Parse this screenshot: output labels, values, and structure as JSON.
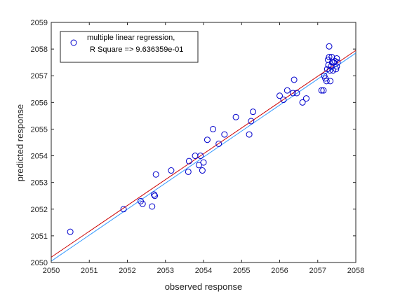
{
  "chart_data": {
    "type": "scatter",
    "xlabel": "observed response",
    "ylabel": "predicted response",
    "xlim": [
      2050,
      2058
    ],
    "ylim": [
      2050,
      2059
    ],
    "x_ticks": [
      "2050",
      "2051",
      "2052",
      "2053",
      "2054",
      "2055",
      "2056",
      "2057",
      "2058"
    ],
    "y_ticks": [
      "2050",
      "2051",
      "2052",
      "2053",
      "2054",
      "2055",
      "2056",
      "2057",
      "2058",
      "2059"
    ],
    "legend": {
      "line1": "multiple linear regression,",
      "line2": "R Square => 9.636359e-01",
      "placement": "top-left"
    },
    "colors": {
      "points": "#0000cc",
      "fit_line": "#cc0000",
      "identity_line": "#3399ff"
    },
    "series": [
      {
        "name": "multiple linear regression, R Square => 9.636359e-01",
        "x": [
          2050.5,
          2051.9,
          2052.35,
          2052.4,
          2052.65,
          2052.7,
          2052.72,
          2052.75,
          2053.15,
          2053.6,
          2053.62,
          2053.78,
          2053.88,
          2053.92,
          2053.97,
          2054.0,
          2054.1,
          2054.25,
          2054.4,
          2054.55,
          2054.85,
          2055.2,
          2055.25,
          2055.3,
          2056.0,
          2056.1,
          2056.2,
          2056.35,
          2056.38,
          2056.45,
          2056.6,
          2056.7,
          2057.1,
          2057.15,
          2057.17,
          2057.2,
          2057.23,
          2057.25,
          2057.27,
          2057.28,
          2057.3,
          2057.3,
          2057.32,
          2057.33,
          2057.35,
          2057.37,
          2057.38,
          2057.4,
          2057.42,
          2057.45,
          2057.48,
          2057.5,
          2057.5,
          2057.52
        ],
        "y": [
          2051.15,
          2052.0,
          2052.3,
          2052.2,
          2052.1,
          2052.55,
          2052.5,
          2053.3,
          2053.45,
          2053.4,
          2053.8,
          2054.0,
          2053.65,
          2054.0,
          2053.45,
          2053.75,
          2054.6,
          2055.0,
          2054.45,
          2054.8,
          2055.45,
          2054.8,
          2055.3,
          2055.65,
          2056.25,
          2056.1,
          2056.45,
          2056.35,
          2056.85,
          2056.35,
          2056.0,
          2056.15,
          2056.45,
          2056.45,
          2057.0,
          2056.9,
          2056.8,
          2057.25,
          2057.6,
          2057.4,
          2058.1,
          2057.7,
          2057.2,
          2056.8,
          2057.35,
          2057.7,
          2057.5,
          2057.2,
          2057.5,
          2057.55,
          2057.25,
          2057.65,
          2057.35,
          2057.5
        ]
      }
    ],
    "fit_line": {
      "x": [
        2050,
        2058
      ],
      "y": [
        2050.2,
        2057.95
      ]
    },
    "identity_line": {
      "x": [
        2050,
        2058
      ],
      "y": [
        2050.05,
        2057.85
      ]
    }
  }
}
